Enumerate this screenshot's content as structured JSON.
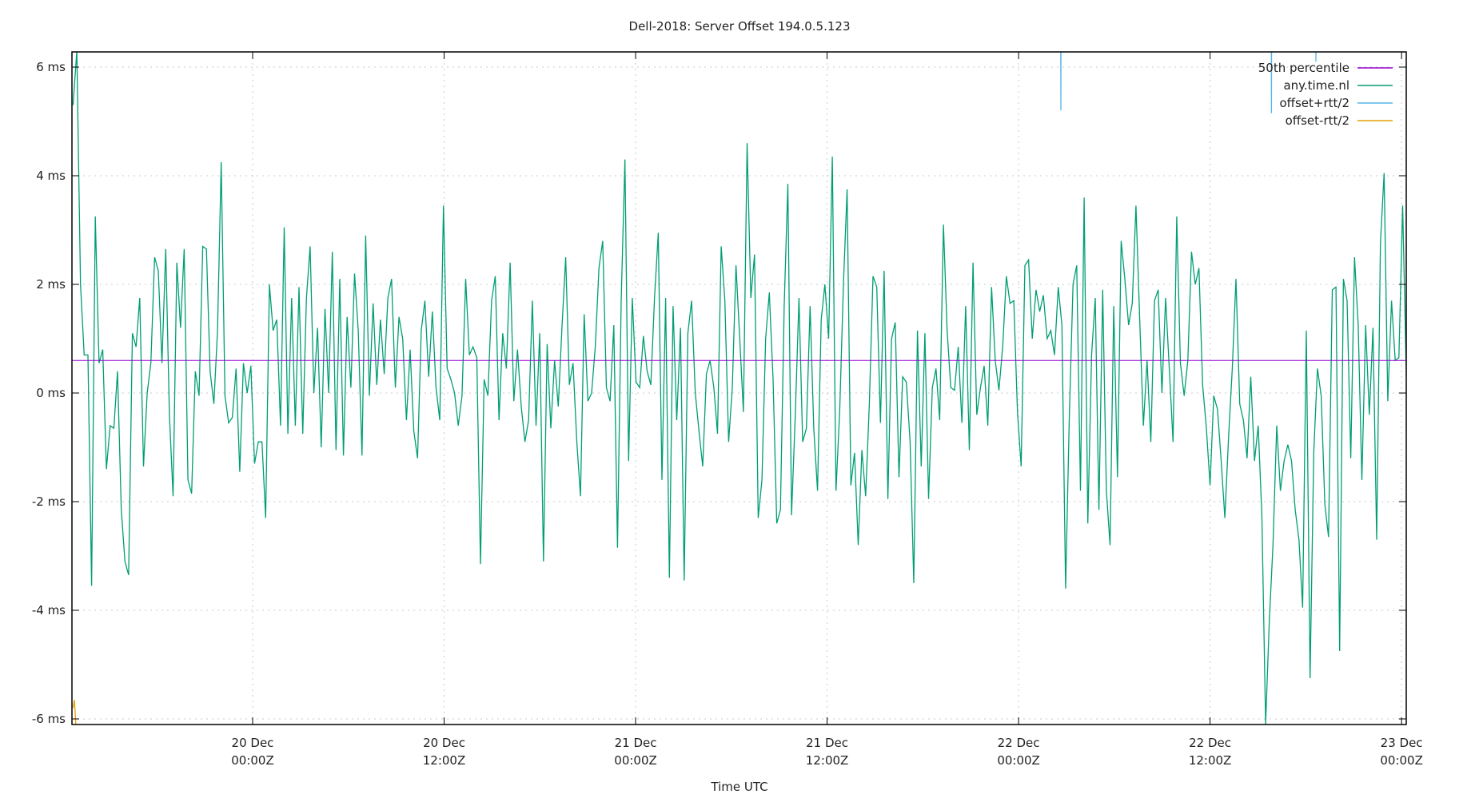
{
  "chart_data": {
    "type": "line",
    "title": "Dell-2018: Server Offset 194.0.5.123",
    "xlabel": "Time UTC",
    "ylabel": "",
    "ylim": [
      -6.1,
      6.28
    ],
    "xlim": [
      "19 Dec 11:30Z",
      "23 Dec 00:18Z"
    ],
    "grid": true,
    "legend_position": "top-right",
    "y_ticks": [
      {
        "value": 6,
        "label": "6 ms"
      },
      {
        "value": 4,
        "label": "4 ms"
      },
      {
        "value": 2,
        "label": "2 ms"
      },
      {
        "value": 0,
        "label": "0 ms"
      },
      {
        "value": -2,
        "label": "-2 ms"
      },
      {
        "value": -4,
        "label": "-4 ms"
      },
      {
        "value": -6,
        "label": "-6 ms"
      }
    ],
    "x_ticks": [
      {
        "value": "20 Dec 00:00Z",
        "line1": "20 Dec",
        "line2": "00:00Z"
      },
      {
        "value": "20 Dec 12:00Z",
        "line1": "20 Dec",
        "line2": "12:00Z"
      },
      {
        "value": "21 Dec 00:00Z",
        "line1": "21 Dec",
        "line2": "00:00Z"
      },
      {
        "value": "21 Dec 12:00Z",
        "line1": "21 Dec",
        "line2": "12:00Z"
      },
      {
        "value": "22 Dec 00:00Z",
        "line1": "22 Dec",
        "line2": "00:00Z"
      },
      {
        "value": "22 Dec 12:00Z",
        "line1": "22 Dec",
        "line2": "12:00Z"
      },
      {
        "value": "23 Dec 00:00Z",
        "line1": "23 Dec",
        "line2": "00:00Z"
      }
    ],
    "series": [
      {
        "name": "50th percentile",
        "color": "#9400d3",
        "points": [
          [
            "19 Dec 11:30Z",
            0.6
          ],
          [
            "23 Dec 00:18Z",
            0.6
          ]
        ]
      },
      {
        "name": "any.time.nl",
        "color": "#009e73",
        "x_start": "19 Dec 12:45Z",
        "x_end": "23 Dec 00:18Z",
        "values": [
          5.3,
          6.3,
          2.0,
          0.7,
          0.7,
          -3.55,
          3.25,
          0.55,
          0.8,
          -1.4,
          -0.6,
          -0.65,
          0.4,
          -2.15,
          -3.1,
          -3.35,
          1.1,
          0.85,
          1.75,
          -1.35,
          0.0,
          0.55,
          2.5,
          2.25,
          0.55,
          2.65,
          -0.4,
          -1.9,
          2.4,
          1.2,
          2.65,
          -1.6,
          -1.85,
          0.4,
          -0.05,
          2.7,
          2.65,
          0.4,
          -0.2,
          1.15,
          4.25,
          -0.05,
          -0.55,
          -0.45,
          0.45,
          -1.45,
          0.55,
          0.0,
          0.5,
          -1.3,
          -0.9,
          -0.9,
          -2.3,
          2.0,
          1.15,
          1.35,
          -0.6,
          3.05,
          -0.75,
          1.75,
          -0.6,
          1.95,
          -0.75,
          1.75,
          2.7,
          0.0,
          1.2,
          -1.0,
          1.55,
          0.0,
          2.6,
          -1.05,
          2.1,
          -1.15,
          1.4,
          0.1,
          2.2,
          1.15,
          -1.15,
          2.9,
          -0.05,
          1.65,
          0.15,
          1.35,
          0.35,
          1.75,
          2.1,
          0.1,
          1.4,
          1.0,
          -0.5,
          0.8,
          -0.7,
          -1.2,
          1.15,
          1.7,
          0.3,
          1.5,
          0.1,
          -0.5,
          3.45,
          0.45,
          0.25,
          0.0,
          -0.6,
          -0.05,
          2.1,
          0.7,
          0.85,
          0.65,
          -3.15,
          0.25,
          -0.05,
          1.7,
          2.15,
          -0.5,
          1.1,
          0.45,
          2.4,
          -0.15,
          0.8,
          -0.25,
          -0.9,
          -0.5,
          1.7,
          -0.6,
          1.1,
          -3.1,
          0.9,
          -0.65,
          0.6,
          -0.25,
          1.2,
          2.5,
          0.15,
          0.55,
          -0.9,
          -1.9,
          1.45,
          -0.15,
          0.0,
          0.85,
          2.3,
          2.8,
          0.1,
          -0.15,
          1.25,
          -2.85,
          1.7,
          4.3,
          -1.25,
          1.75,
          0.2,
          0.1,
          1.05,
          0.4,
          0.15,
          1.75,
          2.95,
          -1.6,
          1.75,
          -3.4,
          1.6,
          -0.5,
          1.2,
          -3.45,
          1.1,
          1.7,
          0.0,
          -0.7,
          -1.35,
          0.35,
          0.6,
          0.1,
          -0.75,
          2.7,
          1.7,
          -0.9,
          0.1,
          2.35,
          1.0,
          -0.35,
          4.6,
          1.75,
          2.55,
          -2.3,
          -1.6,
          1.0,
          1.85,
          0.25,
          -2.4,
          -2.15,
          1.6,
          3.85,
          -2.25,
          -0.4,
          1.75,
          -0.9,
          -0.65,
          1.6,
          -0.65,
          -1.8,
          1.35,
          2.0,
          1.0,
          4.35,
          -1.8,
          -0.3,
          2.0,
          3.75,
          -1.7,
          -1.1,
          -2.8,
          -1.05,
          -1.9,
          -0.2,
          2.15,
          1.95,
          -0.55,
          2.25,
          -1.95,
          1.0,
          1.3,
          -1.55,
          0.3,
          0.2,
          -0.9,
          -3.5,
          1.15,
          -1.35,
          1.1,
          -1.95,
          0.1,
          0.45,
          -0.5,
          3.1,
          1.15,
          0.1,
          0.05,
          0.85,
          -0.55,
          1.6,
          -1.05,
          2.4,
          -0.4,
          0.1,
          0.5,
          -0.6,
          1.95,
          0.6,
          0.05,
          0.85,
          2.15,
          1.65,
          1.7,
          -0.35,
          -1.35,
          2.35,
          2.45,
          1.0,
          1.9,
          1.5,
          1.8,
          1.0,
          1.15,
          0.7,
          1.95,
          1.25,
          -3.6,
          -0.4,
          2.0,
          2.35,
          -1.8,
          3.6,
          -2.4,
          0.7,
          1.75,
          -2.15,
          1.9,
          -1.8,
          -2.8,
          1.6,
          -1.55,
          2.8,
          2.1,
          1.25,
          1.65,
          3.45,
          1.35,
          -0.6,
          0.6,
          -0.9,
          1.7,
          1.9,
          0.0,
          1.75,
          0.45,
          -0.9,
          3.25,
          0.55,
          -0.05,
          0.6,
          2.6,
          2.0,
          2.3,
          0.15,
          -0.65,
          -1.7,
          -0.05,
          -0.3,
          -1.25,
          -2.3,
          -0.8,
          0.45,
          2.1,
          -0.2,
          -0.5,
          -1.2,
          0.3,
          -1.25,
          -0.6,
          -2.25,
          -6.1,
          -4.2,
          -2.8,
          -0.6,
          -1.8,
          -1.25,
          -0.95,
          -1.25,
          -2.15,
          -2.7,
          -3.95,
          1.15,
          -5.25,
          -1.1,
          0.45,
          -0.05,
          -2.05,
          -2.65,
          1.9,
          1.95,
          -4.75,
          2.1,
          1.7,
          -1.2,
          2.5,
          1.25,
          -1.6,
          1.25,
          -0.4,
          1.2,
          -2.7,
          2.75,
          4.05,
          -0.15,
          1.7,
          0.6,
          0.65,
          3.45,
          0.3
        ]
      },
      {
        "name": "offset+rtt/2",
        "color": "#56b4e9",
        "points": [
          [
            "22 Dec 02:38Z",
            8.0
          ],
          [
            "22 Dec 02:39Z",
            5.2
          ],
          [
            "22 Dec 02:40Z",
            8.0
          ],
          [
            "22 Dec 15:50Z",
            8.0
          ],
          [
            "22 Dec 15:51Z",
            5.15
          ],
          [
            "22 Dec 15:52Z",
            8.0
          ],
          [
            "22 Dec 18:37Z",
            8.0
          ],
          [
            "22 Dec 18:38Z",
            6.1
          ],
          [
            "22 Dec 18:39Z",
            8.0
          ]
        ]
      },
      {
        "name": "offset-rtt/2",
        "color": "#e69f00",
        "points": [
          [
            "19 Dec 12:45Z",
            -5.8
          ],
          [
            "19 Dec 12:50Z",
            -5.65
          ],
          [
            "19 Dec 12:55Z",
            -6.1
          ]
        ]
      }
    ]
  }
}
